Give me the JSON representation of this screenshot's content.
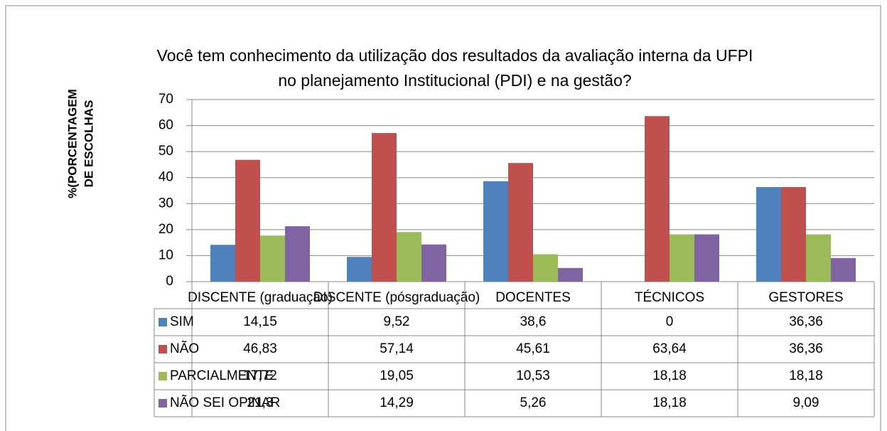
{
  "chart_data": {
    "type": "bar",
    "title": [
      "Você tem conhecimento da utilização dos resultados da avaliação interna da UFPI",
      "no planejamento Institucional (PDI) e na gestão?"
    ],
    "y_label": [
      "%(PORCENTAGEM",
      "DE ESCOLHAS"
    ],
    "categories": [
      "DISCENTE     (graduação)",
      "DISCENTE     (pósgraduação)",
      "DOCENTES",
      "TÉCNICOS",
      "GESTORES"
    ],
    "series": [
      {
        "name": "SIM",
        "color": "#4f81bd",
        "values": [
          14.15,
          9.52,
          38.6,
          0,
          36.36
        ],
        "value_labels": [
          "14,15",
          "9,52",
          "38,6",
          "0",
          "36,36"
        ]
      },
      {
        "name": "NÃO",
        "color": "#c0504d",
        "values": [
          46.83,
          57.14,
          45.61,
          63.64,
          36.36
        ],
        "value_labels": [
          "46,83",
          "57,14",
          "45,61",
          "63,64",
          "36,36"
        ]
      },
      {
        "name": "PARCIALMENTE",
        "color": "#9bbb59",
        "values": [
          17.72,
          19.05,
          10.53,
          18.18,
          18.18
        ],
        "value_labels": [
          "17,72",
          "19,05",
          "10,53",
          "18,18",
          "18,18"
        ]
      },
      {
        "name": "NÃO SEI OPINAR",
        "color": "#8064a2",
        "values": [
          21.3,
          14.29,
          5.26,
          18.18,
          9.09
        ],
        "value_labels": [
          "21,3",
          "14,29",
          "5,26",
          "18,18",
          "9,09"
        ]
      }
    ],
    "ylim": [
      0,
      70
    ],
    "yticks": [
      0,
      10,
      20,
      30,
      40,
      50,
      60,
      70
    ],
    "grid": true,
    "data_table": true
  }
}
